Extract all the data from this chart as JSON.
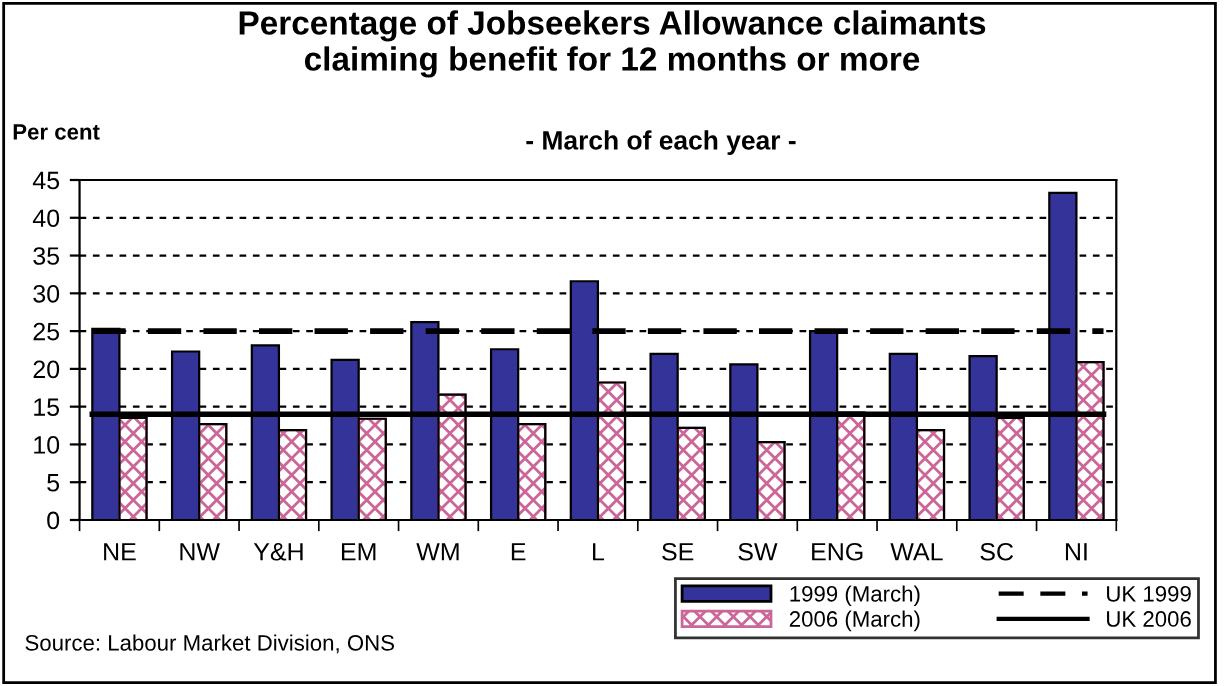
{
  "chart_data": {
    "type": "bar",
    "title": "Percentage of Jobseekers Allowance claimants\nclaiming benefit for 12 months or more",
    "subtitle": "- March of each year -",
    "ylabel": "Per cent",
    "categories": [
      "NE",
      "NW",
      "Y&H",
      "EM",
      "WM",
      "E",
      "L",
      "SE",
      "SW",
      "ENG",
      "WAL",
      "SC",
      "NI"
    ],
    "series": [
      {
        "name": "1999 (March)",
        "color": "#333399",
        "values": [
          25.3,
          22.3,
          23.1,
          21.2,
          26.2,
          22.6,
          31.6,
          22.0,
          20.6,
          25.0,
          22.0,
          21.7,
          43.3
        ]
      },
      {
        "name": "2006 (March)",
        "color": "#cc6699",
        "values": [
          13.5,
          12.7,
          11.9,
          13.4,
          16.6,
          12.7,
          18.2,
          12.2,
          10.3,
          14.2,
          11.9,
          13.5,
          20.9
        ]
      }
    ],
    "ref_lines": [
      {
        "axis": "y",
        "value": 25,
        "label": "UK 1999",
        "color": "#000000",
        "line_style": "dashed"
      },
      {
        "axis": "y",
        "value": 14,
        "label": "UK 2006",
        "color": "#000000",
        "line_style": "solid"
      }
    ],
    "ylim": [
      0,
      45
    ],
    "yticks": [
      0,
      5,
      10,
      15,
      20,
      25,
      30,
      35,
      40,
      45
    ],
    "grid": "y",
    "legend": "bottom right",
    "annotations": [
      "Source: Labour Market Division, ONS"
    ]
  }
}
